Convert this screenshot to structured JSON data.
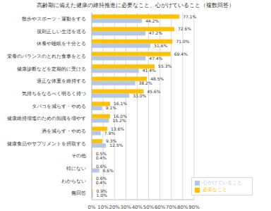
{
  "chart_data": {
    "type": "bar",
    "title": "高齢期に備えた健康の維持推進に必要なこと、心がけていること（複数回答）",
    "orientation": "horizontal",
    "categories": [
      "散歩やスポーツ・運動をする",
      "規則正しい生活を送る",
      "休養や睡眠を十分とる",
      "栄養のバランスのとれた食事をとる",
      "健康診断などを定期的に受ける",
      "適正な体重を維持する",
      "気持ちをなるべく明るく持つ",
      "タバコを減らす・やめる",
      "健康維持増進のための知識を増やす",
      "酒を減らす・やめる",
      "健康食品やサプリメントを摂取する",
      "その他",
      "特にない",
      "わからない",
      "無回答"
    ],
    "series": [
      {
        "name": "必要なこと",
        "color": "#FFC000",
        "values": [
          77.1,
          72.6,
          71.0,
          69.4,
          55.3,
          48.5,
          45.6,
          16.1,
          16.0,
          13.6,
          9.3,
          0.5,
          0.6,
          0.6,
          0.9
        ],
        "value_labels": [
          "77.1%",
          "72.6%",
          "71.0%",
          "69.4%",
          "55.3%",
          "48.5%",
          "45.6%",
          "16.1%",
          "16.0%",
          "13.6%",
          "9.3%",
          "0.5%",
          "0.6%",
          "0.6%",
          "0.9%"
        ]
      },
      {
        "name": "心がけていること",
        "color": "#B4C7E7",
        "values": [
          44.2,
          47.2,
          51.6,
          47.4,
          41.4,
          38.2,
          33.0,
          9.1,
          15.2,
          7.9,
          12.5,
          0.4,
          6.6,
          0.4,
          1.0
        ],
        "value_labels": [
          "44.2%",
          "47.2%",
          "51.6%",
          "47.4%",
          "41.4%",
          "38.2%",
          "33.0%",
          "9.1%",
          "15.2%",
          "7.9%",
          "12.5%",
          "0.4%",
          "6.6%",
          "0.4%",
          "1.0%"
        ]
      }
    ],
    "xlim": [
      0,
      90
    ],
    "xticks": [
      {
        "value": 0,
        "label": "0%"
      },
      {
        "value": 10,
        "label": "10%"
      },
      {
        "value": 20,
        "label": "20%"
      },
      {
        "value": 30,
        "label": "30%"
      },
      {
        "value": 40,
        "label": "40%"
      },
      {
        "value": 50,
        "label": "50%"
      },
      {
        "value": 60,
        "label": "60%"
      },
      {
        "value": 70,
        "label": "70%"
      },
      {
        "value": 80,
        "label": "80%"
      },
      {
        "value": 90,
        "label": "90%"
      }
    ],
    "grid": true,
    "legend": "lower right",
    "data_labels": true
  }
}
